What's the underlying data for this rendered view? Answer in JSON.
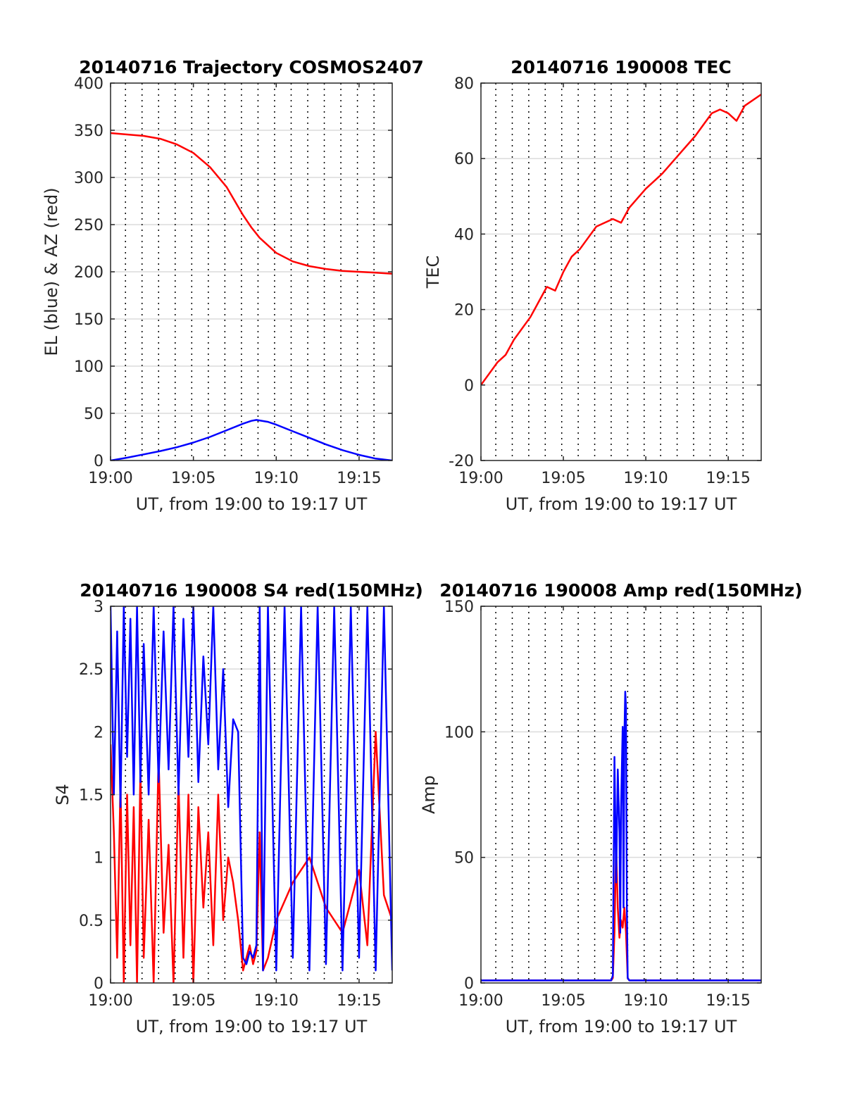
{
  "colors": {
    "red": "#ff0000",
    "blue": "#0000ff",
    "grid_h": "#dcdcdc",
    "grid_v": "#000000",
    "axis": "#262626"
  },
  "chart_data": [
    {
      "type": "line",
      "title": "20140716 Trajectory COSMOS2407",
      "xlabel": "UT, from 19:00 to 19:17 UT",
      "ylabel": "EL (blue) & AZ (red)",
      "xlim": [
        0,
        17
      ],
      "ylim": [
        0,
        400
      ],
      "yticks": [
        "0",
        "50",
        "100",
        "150",
        "200",
        "250",
        "300",
        "350",
        "400"
      ],
      "xticks": [
        "19:00",
        "19:05",
        "19:10",
        "19:15"
      ],
      "series": [
        {
          "color": "red",
          "x": [
            0,
            1,
            2,
            3,
            4,
            5,
            6,
            7,
            8,
            8.5,
            9,
            10,
            11,
            12,
            13,
            14,
            15,
            16,
            17
          ],
          "values": [
            347,
            345.5,
            344,
            341,
            335,
            326,
            311,
            290,
            260,
            247,
            236,
            220,
            211,
            206,
            203,
            201,
            200,
            199,
            198
          ]
        },
        {
          "color": "blue",
          "x": [
            0,
            1,
            2,
            3,
            4,
            5,
            6,
            7,
            8,
            8.5,
            8.8,
            9.5,
            10,
            11,
            12,
            13,
            14,
            15,
            16,
            17
          ],
          "values": [
            0,
            3,
            6.5,
            10,
            14,
            19,
            25,
            32,
            39,
            42,
            43,
            41,
            38,
            31,
            24,
            17,
            11,
            6,
            2,
            0
          ]
        }
      ]
    },
    {
      "type": "line",
      "title": "20140716 190008 TEC",
      "xlabel": "UT, from 19:00 to 19:17 UT",
      "ylabel": "TEC",
      "xlim": [
        0,
        17
      ],
      "ylim": [
        -20,
        80
      ],
      "yticks": [
        "-20",
        "0",
        "20",
        "40",
        "60",
        "80"
      ],
      "xticks": [
        "19:00",
        "19:05",
        "19:10",
        "19:15"
      ],
      "series": [
        {
          "color": "red",
          "x": [
            0,
            0.5,
            1,
            1.5,
            2,
            3,
            4,
            4.5,
            5,
            5.5,
            6,
            7,
            8,
            8.5,
            9,
            10,
            11,
            12,
            13,
            14,
            14.5,
            15,
            15.5,
            16,
            17
          ],
          "values": [
            0,
            3,
            6,
            8,
            12,
            18,
            26,
            25,
            30,
            34,
            36,
            42,
            44,
            43,
            47,
            52,
            56,
            61,
            66,
            72,
            73,
            72,
            70,
            74,
            77
          ]
        }
      ]
    },
    {
      "type": "line",
      "title": "20140716 190008 S4 red(150MHz)",
      "xlabel": "UT, from 19:00 to 19:17 UT",
      "ylabel": "S4",
      "xlim": [
        0,
        17
      ],
      "ylim": [
        0,
        3
      ],
      "yticks": [
        "0",
        "0.5",
        "1",
        "1.5",
        "2",
        "2.5",
        "3"
      ],
      "xticks": [
        "19:00",
        "19:05",
        "19:10",
        "19:15"
      ],
      "series": [
        {
          "color": "red",
          "x": [
            0,
            0.2,
            0.4,
            0.6,
            0.8,
            1,
            1.2,
            1.4,
            1.6,
            1.8,
            2,
            2.3,
            2.6,
            2.9,
            3.2,
            3.5,
            3.8,
            4.1,
            4.4,
            4.7,
            5,
            5.3,
            5.6,
            5.9,
            6.2,
            6.5,
            6.8,
            7.1,
            7.4,
            7.7,
            8,
            8.2,
            8.4,
            8.6,
            8.8,
            9,
            9.2,
            9.5,
            10,
            11,
            12,
            13,
            14,
            15,
            15.5,
            16,
            16.5,
            17
          ],
          "values": [
            1.9,
            1.2,
            0.2,
            1.6,
            0,
            1.5,
            0.3,
            1.4,
            0,
            1.7,
            0.2,
            1.3,
            0,
            1.8,
            0.4,
            1.1,
            0,
            1.6,
            0.2,
            1.5,
            0,
            1.4,
            0.6,
            1.2,
            0.3,
            1.5,
            0.5,
            1.0,
            0.8,
            0.5,
            0.1,
            0.2,
            0.3,
            0.15,
            0.25,
            1.2,
            0.1,
            0.2,
            0.5,
            0.8,
            1.0,
            0.6,
            0.4,
            0.9,
            0.3,
            2.0,
            0.7,
            0.5
          ]
        },
        {
          "color": "blue",
          "x": [
            0,
            0.2,
            0.4,
            0.6,
            0.8,
            1,
            1.2,
            1.4,
            1.6,
            1.8,
            2,
            2.3,
            2.6,
            2.9,
            3.2,
            3.5,
            3.8,
            4.1,
            4.4,
            4.7,
            5,
            5.3,
            5.6,
            5.9,
            6.2,
            6.5,
            6.8,
            7.1,
            7.4,
            7.7,
            8,
            8.2,
            8.4,
            8.6,
            8.8,
            9,
            9.2,
            9.5,
            10,
            10.5,
            11,
            11.5,
            12,
            12.5,
            13,
            13.5,
            14,
            14.5,
            15,
            15.5,
            16,
            16.5,
            17
          ],
          "values": [
            3,
            1.5,
            2.8,
            1.4,
            3,
            1.8,
            2.9,
            1.5,
            3,
            1.6,
            2.7,
            1.5,
            3,
            1.6,
            2.8,
            1.7,
            3,
            1.5,
            2.9,
            1.8,
            3,
            1.6,
            2.6,
            1.9,
            3,
            1.7,
            2.5,
            1.4,
            2.1,
            2.0,
            0.2,
            0.15,
            0.25,
            0.2,
            0.3,
            3,
            0.1,
            3,
            0.1,
            3,
            0.2,
            3,
            0.1,
            3,
            0.15,
            3,
            0.1,
            3,
            0.2,
            3,
            0.1,
            3,
            0.1
          ]
        }
      ]
    },
    {
      "type": "line",
      "title": "20140716 190008 Amp red(150MHz)",
      "xlabel": "UT, from 19:00 to 19:17 UT",
      "ylabel": "Amp",
      "xlim": [
        0,
        17
      ],
      "ylim": [
        0,
        150
      ],
      "yticks": [
        "0",
        "50",
        "100",
        "150"
      ],
      "xticks": [
        "19:00",
        "19:05",
        "19:10",
        "19:15"
      ],
      "series": [
        {
          "color": "red",
          "x": [
            0,
            7.9,
            8.0,
            8.1,
            8.2,
            8.3,
            8.4,
            8.5,
            8.6,
            8.7,
            8.8,
            8.9,
            9.0,
            17
          ],
          "values": [
            1,
            1,
            2,
            20,
            55,
            30,
            18,
            25,
            22,
            30,
            20,
            2,
            1,
            1
          ]
        },
        {
          "color": "blue",
          "x": [
            0,
            2,
            4,
            6,
            7.9,
            8.0,
            8.1,
            8.2,
            8.3,
            8.4,
            8.45,
            8.5,
            8.6,
            8.65,
            8.7,
            8.75,
            8.8,
            8.85,
            8.9,
            9.0,
            10,
            12,
            14,
            16,
            17
          ],
          "values": [
            1,
            1,
            1,
            1,
            1,
            3,
            90,
            40,
            85,
            60,
            20,
            70,
            102,
            30,
            98,
            116,
            110,
            30,
            2,
            1,
            1,
            1,
            1,
            1,
            1
          ]
        }
      ]
    }
  ]
}
